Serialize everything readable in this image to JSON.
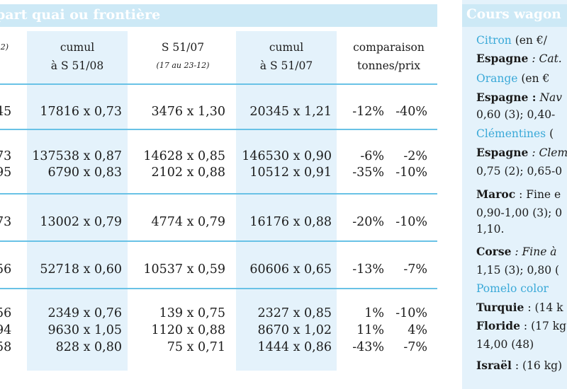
{
  "left_header": {
    "title": "part quai ou frontière"
  },
  "columns": {
    "c0": {
      "line1": "",
      "line2": "2)"
    },
    "c1": {
      "line1": "cumul",
      "line2": "à S 51/08"
    },
    "c2": {
      "line1": "S 51/07",
      "line2": "(17 au 23-12)"
    },
    "c3": {
      "line1": "cumul",
      "line2": "à S 51/07"
    },
    "c4": {
      "line1": "comparaison",
      "line2": "tonnes/prix"
    }
  },
  "rows": [
    {
      "c0": "45",
      "c1": "17816 x 0,73",
      "c2": "3476 x 1,30",
      "c3": "20345 x 1,21",
      "c4": "-12%",
      "c5": "-40%"
    },
    {
      "c0": "73",
      "c1": "137538 x 0,87",
      "c2": "14628 x 0,85",
      "c3": "146530 x 0,90",
      "c4": "-6%",
      "c5": "-2%"
    },
    {
      "c0": "95",
      "c1": "6790 x 0,83",
      "c2": "2102 x 0,88",
      "c3": "10512 x 0,91",
      "c4": "-35%",
      "c5": "-10%"
    },
    {
      "c0": "73",
      "c1": "13002 x 0,79",
      "c2": "4774 x 0,79",
      "c3": "16176 x 0,88",
      "c4": "-20%",
      "c5": "-10%"
    },
    {
      "c0": "56",
      "c1": "52718 x 0,60",
      "c2": "10537 x 0,59",
      "c3": "60606 x 0,65",
      "c4": "-13%",
      "c5": "-7%"
    },
    {
      "c0": "56",
      "c1": "2349 x 0,76",
      "c2": "139 x 0,75",
      "c3": "2327 x 0,85",
      "c4": "1%",
      "c5": "-10%"
    },
    {
      "c0": "94",
      "c1": "9630 x 1,05",
      "c2": "1120 x 0,88",
      "c3": "8670 x 1,02",
      "c4": "11%",
      "c5": "4%"
    },
    {
      "c0": "58",
      "c1": "828 x 0,80",
      "c2": "75 x 0,71",
      "c3": "1444 x 0,86",
      "c4": "-43%",
      "c5": "-7%"
    }
  ],
  "right_panel": {
    "title": "Cours wagon",
    "lines": [
      {
        "blue": "Citron",
        "rest": " (en €/"
      },
      {
        "bold": "Espagne",
        "italic": " : Cat."
      },
      {
        "blue": "Orange",
        "rest": " (en €"
      },
      {
        "bold": "Espagne :",
        "italic": " Nav"
      },
      {
        "rest": "0,60 (3); 0,40-"
      },
      {
        "blue": "Clémentines",
        "rest": " ("
      },
      {
        "bold": "Espagne",
        "italic": " : Clem"
      },
      {
        "rest": "0,75 (2); 0,65-0"
      },
      {
        "bold": "Maroc",
        "rest": " : Fine e"
      },
      {
        "rest": "0,90-1,00 (3); 0"
      },
      {
        "rest": "1,10."
      },
      {
        "bold": "Corse",
        "italic": " : Fine à"
      },
      {
        "rest": "1,15 (3); 0,80 ("
      },
      {
        "blue": "Pomelo color"
      },
      {
        "bold": "Turquie",
        "rest": " : (14 k"
      },
      {
        "bold": "Floride",
        "rest": " : (17 kg"
      },
      {
        "rest": "14,00 (48)"
      },
      {
        "bold": "Israël",
        "rest": " : (16 kg)"
      }
    ]
  }
}
